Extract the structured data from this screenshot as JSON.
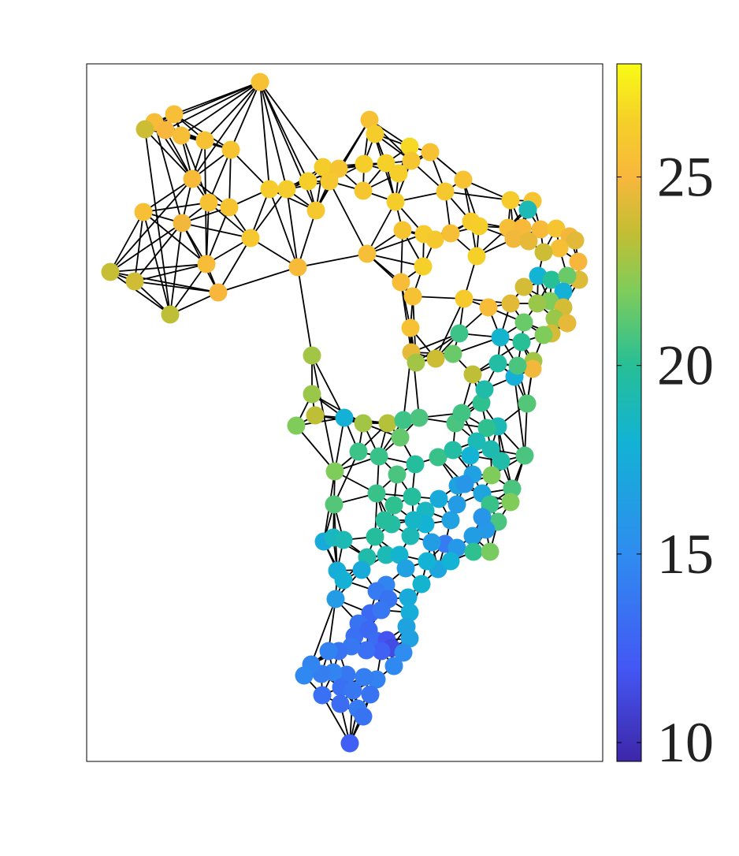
{
  "chart_data": {
    "type": "scatter",
    "title": "",
    "xlabel": "",
    "ylabel": "",
    "axes_ticks_visible": false,
    "grid": false,
    "edge_color": "#000000",
    "colormap": "parula",
    "colorbar": {
      "position": "right",
      "range": [
        9.5,
        28
      ],
      "ticks": [
        10,
        15,
        20,
        25
      ],
      "tick_labels": [
        "10",
        "15",
        "20",
        "25"
      ],
      "stops": [
        {
          "v": 9.5,
          "c": "#3e26a8"
        },
        {
          "v": 12,
          "c": "#4358f5"
        },
        {
          "v": 15,
          "c": "#2f8cf0"
        },
        {
          "v": 18,
          "c": "#12b3d4"
        },
        {
          "v": 20,
          "c": "#26bf96"
        },
        {
          "v": 22,
          "c": "#80cc5a"
        },
        {
          "v": 23.5,
          "c": "#c2be33"
        },
        {
          "v": 25,
          "c": "#f8b73c"
        },
        {
          "v": 26.5,
          "c": "#f5d028"
        },
        {
          "v": 28,
          "c": "#f9fb15"
        }
      ]
    }
  }
}
